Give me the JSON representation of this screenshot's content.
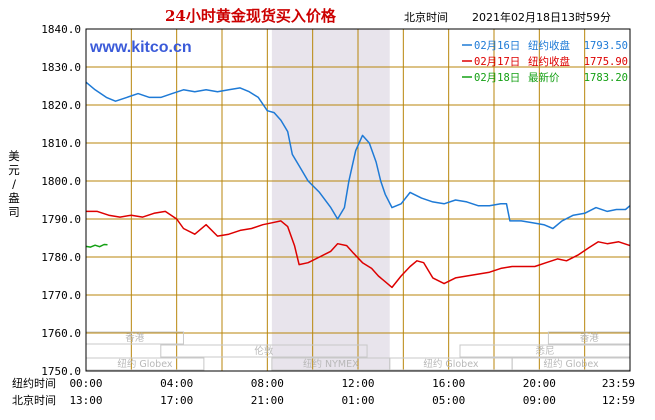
{
  "header": {
    "title": "24小时黄金现货买入价格",
    "timezone_label": "北京时间",
    "timestamp": "2021年02月18日13时59分",
    "website": "www.kitco.cn"
  },
  "axis": {
    "ylabel": "美元/盎司",
    "yticks": [
      "1840.0",
      "1830.0",
      "1820.0",
      "1810.0",
      "1800.0",
      "1790.0",
      "1780.0",
      "1770.0",
      "1760.0",
      "1750.0"
    ],
    "row1_label": "纽约时间",
    "row2_label": "北京时间",
    "row1_ticks": [
      "00:00",
      "04:00",
      "08:00",
      "12:00",
      "16:00",
      "20:00",
      "23:59"
    ],
    "row2_ticks": [
      "13:00",
      "17:00",
      "21:00",
      "01:00",
      "05:00",
      "09:00",
      "12:59"
    ]
  },
  "legend": [
    {
      "date": "02月16日",
      "label": "纽约收盘",
      "value": "1793.50",
      "color": "#1e7ad6"
    },
    {
      "date": "02月17日",
      "label": "纽约收盘",
      "value": "1775.90",
      "color": "#dd0000"
    },
    {
      "date": "02月18日",
      "label": "最新价",
      "value": "1783.20",
      "color": "#14a014"
    }
  ],
  "sessions": {
    "row1": [
      "香港",
      "香港"
    ],
    "row2": [
      "伦敦",
      "悉尼"
    ],
    "row3": [
      "纽约 Globex",
      "纽约 NYMEX",
      "纽约 Globex",
      "纽约 Globex"
    ]
  },
  "colors": {
    "plot_bg": "#ffffff",
    "grid": "#b8860b",
    "nymex_shade": "#e8e4ec",
    "frame": "#000000"
  },
  "chart_data": {
    "type": "line",
    "title": "24小时黄金现货买入价格",
    "xlabel": "纽约时间 / 北京时间",
    "ylabel": "美元/盎司",
    "x_unit": "hours (纽约时间)",
    "xlim": [
      0,
      24
    ],
    "ylim": [
      1750,
      1840
    ],
    "grid": true,
    "legend_position": "top-right",
    "shaded_region": {
      "label": "纽约 NYMEX",
      "x": [
        8.2,
        13.4
      ]
    },
    "series": [
      {
        "name": "02月16日 纽约收盘",
        "color": "#1e7ad6",
        "points": [
          [
            0,
            1826
          ],
          [
            0.4,
            1824
          ],
          [
            0.9,
            1822
          ],
          [
            1.3,
            1821
          ],
          [
            1.8,
            1822
          ],
          [
            2.3,
            1823
          ],
          [
            2.8,
            1822
          ],
          [
            3.3,
            1822
          ],
          [
            3.8,
            1823
          ],
          [
            4.3,
            1824
          ],
          [
            4.8,
            1823.5
          ],
          [
            5.3,
            1824
          ],
          [
            5.8,
            1823.5
          ],
          [
            6.3,
            1824
          ],
          [
            6.8,
            1824.5
          ],
          [
            7.2,
            1823.5
          ],
          [
            7.6,
            1822
          ],
          [
            8.0,
            1818.5
          ],
          [
            8.3,
            1818
          ],
          [
            8.6,
            1816
          ],
          [
            8.9,
            1813
          ],
          [
            9.1,
            1807
          ],
          [
            9.4,
            1804
          ],
          [
            9.8,
            1800
          ],
          [
            10.3,
            1797
          ],
          [
            10.8,
            1793
          ],
          [
            11.1,
            1790
          ],
          [
            11.4,
            1793
          ],
          [
            11.6,
            1800
          ],
          [
            11.9,
            1808
          ],
          [
            12.2,
            1812
          ],
          [
            12.5,
            1810
          ],
          [
            12.8,
            1805
          ],
          [
            13.0,
            1800
          ],
          [
            13.2,
            1796.5
          ],
          [
            13.5,
            1793
          ],
          [
            13.9,
            1794
          ],
          [
            14.3,
            1797
          ],
          [
            14.8,
            1795.5
          ],
          [
            15.3,
            1794.5
          ],
          [
            15.8,
            1794
          ],
          [
            16.3,
            1795
          ],
          [
            16.8,
            1794.5
          ],
          [
            17.3,
            1793.5
          ],
          [
            17.8,
            1793.5
          ],
          [
            18.3,
            1794
          ],
          [
            18.55,
            1794
          ],
          [
            18.7,
            1789.5
          ],
          [
            19.2,
            1789.5
          ],
          [
            19.7,
            1789
          ],
          [
            20.2,
            1788.5
          ],
          [
            20.6,
            1787.5
          ],
          [
            21.0,
            1789.5
          ],
          [
            21.5,
            1791
          ],
          [
            22.0,
            1791.5
          ],
          [
            22.5,
            1793
          ],
          [
            23.0,
            1792
          ],
          [
            23.4,
            1792.5
          ],
          [
            23.8,
            1792.5
          ],
          [
            24,
            1793.5
          ]
        ]
      },
      {
        "name": "02月17日 纽约收盘",
        "color": "#dd0000",
        "points": [
          [
            0,
            1792
          ],
          [
            0.5,
            1792
          ],
          [
            1.0,
            1791
          ],
          [
            1.5,
            1790.5
          ],
          [
            2.0,
            1791
          ],
          [
            2.5,
            1790.5
          ],
          [
            3.0,
            1791.5
          ],
          [
            3.5,
            1792
          ],
          [
            4.0,
            1790
          ],
          [
            4.3,
            1787.5
          ],
          [
            4.8,
            1786
          ],
          [
            5.3,
            1788.5
          ],
          [
            5.8,
            1785.5
          ],
          [
            6.3,
            1786
          ],
          [
            6.8,
            1787
          ],
          [
            7.3,
            1787.5
          ],
          [
            7.8,
            1788.5
          ],
          [
            8.2,
            1789
          ],
          [
            8.6,
            1789.5
          ],
          [
            8.9,
            1788
          ],
          [
            9.2,
            1783
          ],
          [
            9.4,
            1778
          ],
          [
            9.8,
            1778.5
          ],
          [
            10.3,
            1780
          ],
          [
            10.8,
            1781.5
          ],
          [
            11.1,
            1783.5
          ],
          [
            11.5,
            1783
          ],
          [
            11.8,
            1781
          ],
          [
            12.2,
            1778.5
          ],
          [
            12.6,
            1777
          ],
          [
            12.9,
            1775
          ],
          [
            13.2,
            1773.5
          ],
          [
            13.5,
            1772
          ],
          [
            13.9,
            1775
          ],
          [
            14.3,
            1777.5
          ],
          [
            14.6,
            1779
          ],
          [
            14.9,
            1778.5
          ],
          [
            15.3,
            1774.5
          ],
          [
            15.8,
            1773
          ],
          [
            16.3,
            1774.5
          ],
          [
            16.8,
            1775
          ],
          [
            17.3,
            1775.5
          ],
          [
            17.8,
            1776
          ],
          [
            18.3,
            1777
          ],
          [
            18.8,
            1777.5
          ],
          [
            19.3,
            1777.5
          ],
          [
            19.8,
            1777.5
          ],
          [
            20.3,
            1778.5
          ],
          [
            20.8,
            1779.5
          ],
          [
            21.2,
            1779
          ],
          [
            21.7,
            1780.5
          ],
          [
            22.2,
            1782.5
          ],
          [
            22.6,
            1784
          ],
          [
            23.0,
            1783.5
          ],
          [
            23.5,
            1784
          ],
          [
            24,
            1783
          ]
        ]
      },
      {
        "name": "02月18日 最新价",
        "color": "#14a014",
        "points": [
          [
            0,
            1782.8
          ],
          [
            0.2,
            1782.6
          ],
          [
            0.4,
            1783.1
          ],
          [
            0.6,
            1782.7
          ],
          [
            0.8,
            1783.3
          ],
          [
            0.95,
            1783.2
          ]
        ]
      }
    ]
  }
}
